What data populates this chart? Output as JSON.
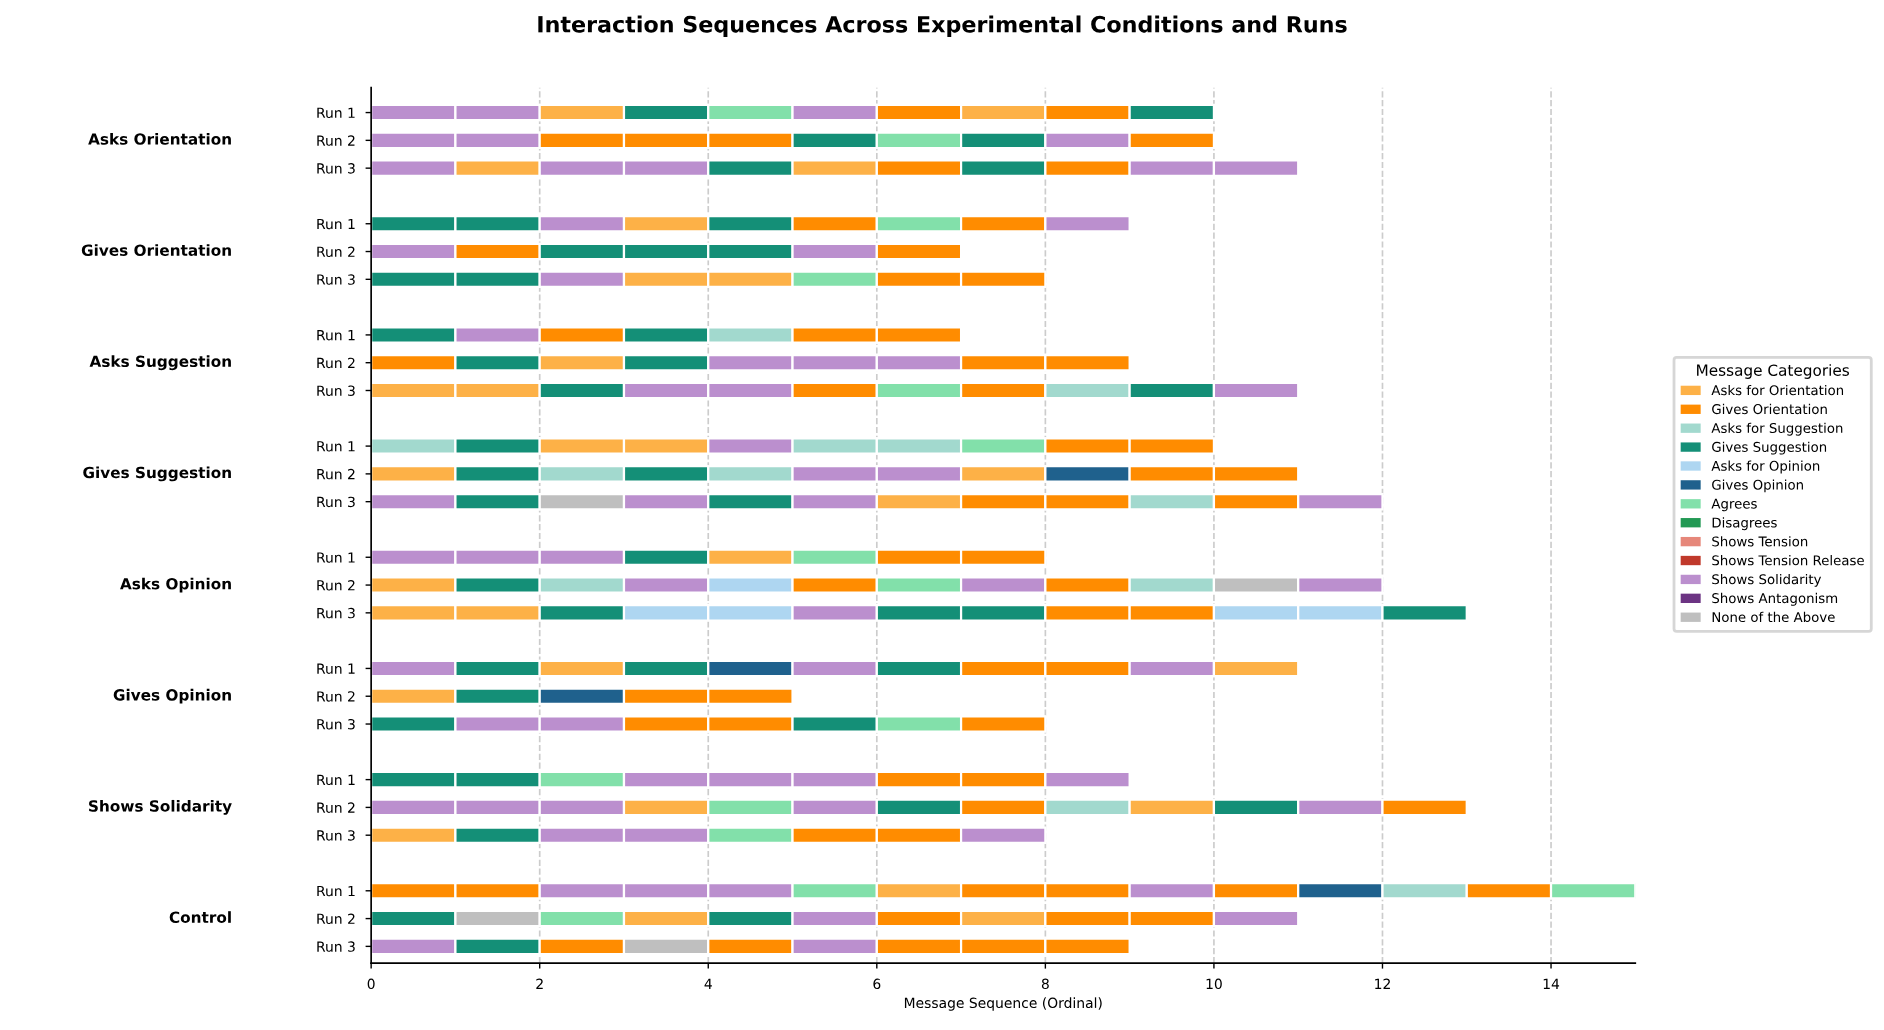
{
  "chart_data": {
    "type": "bar",
    "orientation": "horizontal",
    "stacked": true,
    "title": "Interaction Sequences Across Experimental Conditions and Runs",
    "xlabel": "Message Sequence (Ordinal)",
    "xlim": [
      0,
      15
    ],
    "xticks": [
      0,
      2,
      4,
      6,
      8,
      10,
      12,
      14
    ],
    "grid": "x",
    "legend": "right",
    "legend_title": "Message Categories",
    "annotations": [
      "Asks Orientation",
      "Gives Orientation",
      "Asks Suggestion",
      "Gives Suggestion",
      "Asks Opinion",
      "Gives Opinion",
      "Shows Solidarity",
      "Control"
    ],
    "categories": [
      "Run 1",
      "Run 2",
      "Run 3",
      null,
      "Run 1",
      "Run 2",
      "Run 3",
      null,
      "Run 1",
      "Run 2",
      "Run 3",
      null,
      "Run 1",
      "Run 2",
      "Run 3",
      null,
      "Run 1",
      "Run 2",
      "Run 3",
      null,
      "Run 1",
      "Run 2",
      "Run 3",
      null,
      "Run 1",
      "Run 2",
      "Run 3",
      null,
      "Run 1",
      "Run 2",
      "Run 3"
    ],
    "series": [
      {
        "values": [
          1,
          1,
          1,
          null,
          1,
          1,
          1,
          null,
          1,
          1,
          1,
          null,
          1,
          1,
          1,
          null,
          1,
          1,
          1,
          null,
          1,
          1,
          1,
          null,
          1,
          1,
          1,
          null,
          1,
          1,
          1
        ],
        "colors": [
          "#bb8fce",
          "#bb8fce",
          "#bb8fce",
          null,
          "#148f77",
          "#bb8fce",
          "#148f77",
          null,
          "#148f77",
          "#ff8c00",
          "#fdb147",
          null,
          "#a2d9ce",
          "#fdb147",
          "#bb8fce",
          null,
          "#bb8fce",
          "#fdb147",
          "#fdb147",
          null,
          "#bb8fce",
          "#fdb147",
          "#148f77",
          null,
          "#148f77",
          "#bb8fce",
          "#fdb147",
          null,
          "#ff8c00",
          "#148f77",
          "#bb8fce"
        ]
      },
      {
        "values": [
          1,
          1,
          1,
          null,
          1,
          1,
          1,
          null,
          1,
          1,
          1,
          null,
          1,
          1,
          1,
          null,
          1,
          1,
          1,
          null,
          1,
          1,
          1,
          null,
          1,
          1,
          1,
          null,
          1,
          1,
          1
        ],
        "colors": [
          "#bb8fce",
          "#bb8fce",
          "#fdb147",
          null,
          "#148f77",
          "#ff8c00",
          "#148f77",
          null,
          "#bb8fce",
          "#148f77",
          "#fdb147",
          null,
          "#148f77",
          "#148f77",
          "#148f77",
          null,
          "#bb8fce",
          "#148f77",
          "#fdb147",
          null,
          "#148f77",
          "#148f77",
          "#bb8fce",
          null,
          "#148f77",
          "#bb8fce",
          "#148f77",
          null,
          "#ff8c00",
          "#bfbfbf",
          "#148f77"
        ]
      },
      {
        "values": [
          1,
          1,
          1,
          null,
          1,
          1,
          1,
          null,
          1,
          1,
          1,
          null,
          1,
          1,
          1,
          null,
          1,
          1,
          1,
          null,
          1,
          1,
          1,
          null,
          1,
          1,
          1,
          null,
          1,
          1,
          1
        ],
        "colors": [
          "#fdb147",
          "#ff8c00",
          "#bb8fce",
          null,
          "#bb8fce",
          "#148f77",
          "#bb8fce",
          null,
          "#ff8c00",
          "#fdb147",
          "#148f77",
          null,
          "#fdb147",
          "#a2d9ce",
          "#bfbfbf",
          null,
          "#bb8fce",
          "#a2d9ce",
          "#148f77",
          null,
          "#fdb147",
          "#1f618d",
          "#bb8fce",
          null,
          "#82e0aa",
          "#bb8fce",
          "#bb8fce",
          null,
          "#bb8fce",
          "#82e0aa",
          "#ff8c00"
        ]
      },
      {
        "values": [
          1,
          1,
          1,
          null,
          1,
          1,
          1,
          null,
          1,
          1,
          1,
          null,
          1,
          1,
          1,
          null,
          1,
          1,
          1,
          null,
          1,
          1,
          1,
          null,
          1,
          1,
          1,
          null,
          1,
          1,
          1
        ],
        "colors": [
          "#148f77",
          "#ff8c00",
          "#bb8fce",
          null,
          "#fdb147",
          "#148f77",
          "#fdb147",
          null,
          "#148f77",
          "#148f77",
          "#bb8fce",
          null,
          "#fdb147",
          "#148f77",
          "#bb8fce",
          null,
          "#148f77",
          "#bb8fce",
          "#aed6f1",
          null,
          "#148f77",
          "#ff8c00",
          "#ff8c00",
          null,
          "#bb8fce",
          "#fdb147",
          "#bb8fce",
          null,
          "#bb8fce",
          "#fdb147",
          "#bfbfbf"
        ]
      },
      {
        "values": [
          1,
          1,
          1,
          null,
          1,
          1,
          1,
          null,
          1,
          1,
          1,
          null,
          1,
          1,
          1,
          null,
          1,
          1,
          1,
          null,
          1,
          1,
          1,
          null,
          1,
          1,
          1,
          null,
          1,
          1,
          1
        ],
        "colors": [
          "#82e0aa",
          "#ff8c00",
          "#148f77",
          null,
          "#148f77",
          "#148f77",
          "#fdb147",
          null,
          "#a2d9ce",
          "#bb8fce",
          "#bb8fce",
          null,
          "#bb8fce",
          "#a2d9ce",
          "#148f77",
          null,
          "#fdb147",
          "#aed6f1",
          "#aed6f1",
          null,
          "#1f618d",
          "#ff8c00",
          "#ff8c00",
          null,
          "#bb8fce",
          "#82e0aa",
          "#82e0aa",
          null,
          "#bb8fce",
          "#148f77",
          "#ff8c00"
        ]
      },
      {
        "values": [
          1,
          1,
          1,
          null,
          1,
          1,
          1,
          null,
          1,
          1,
          1,
          null,
          1,
          1,
          1,
          null,
          1,
          1,
          1,
          null,
          1,
          null,
          1,
          null,
          1,
          1,
          1,
          null,
          1,
          1,
          1
        ],
        "colors": [
          "#bb8fce",
          "#148f77",
          "#fdb147",
          null,
          "#ff8c00",
          "#bb8fce",
          "#82e0aa",
          null,
          "#ff8c00",
          "#bb8fce",
          "#ff8c00",
          null,
          "#a2d9ce",
          "#bb8fce",
          "#bb8fce",
          null,
          "#82e0aa",
          "#ff8c00",
          "#bb8fce",
          null,
          "#bb8fce",
          null,
          "#148f77",
          null,
          "#bb8fce",
          "#bb8fce",
          "#ff8c00",
          null,
          "#82e0aa",
          "#bb8fce",
          "#bb8fce"
        ]
      },
      {
        "values": [
          1,
          1,
          1,
          null,
          1,
          1,
          1,
          null,
          1,
          1,
          1,
          null,
          1,
          1,
          1,
          null,
          1,
          1,
          1,
          null,
          1,
          null,
          1,
          null,
          1,
          1,
          1,
          null,
          1,
          1,
          1
        ],
        "colors": [
          "#ff8c00",
          "#82e0aa",
          "#ff8c00",
          null,
          "#82e0aa",
          "#ff8c00",
          "#ff8c00",
          null,
          "#ff8c00",
          "#bb8fce",
          "#82e0aa",
          null,
          "#a2d9ce",
          "#bb8fce",
          "#fdb147",
          null,
          "#ff8c00",
          "#82e0aa",
          "#148f77",
          null,
          "#148f77",
          null,
          "#82e0aa",
          null,
          "#ff8c00",
          "#148f77",
          "#ff8c00",
          null,
          "#fdb147",
          "#ff8c00",
          "#ff8c00"
        ]
      },
      {
        "values": [
          1,
          1,
          1,
          null,
          1,
          null,
          1,
          null,
          null,
          1,
          1,
          null,
          1,
          1,
          1,
          null,
          1,
          1,
          1,
          null,
          1,
          null,
          1,
          null,
          1,
          1,
          1,
          null,
          1,
          1,
          1
        ],
        "colors": [
          "#fdb147",
          "#148f77",
          "#148f77",
          null,
          "#ff8c00",
          null,
          "#ff8c00",
          null,
          null,
          "#ff8c00",
          "#ff8c00",
          null,
          "#82e0aa",
          "#fdb147",
          "#ff8c00",
          null,
          "#ff8c00",
          "#bb8fce",
          "#148f77",
          null,
          "#ff8c00",
          null,
          "#ff8c00",
          null,
          "#ff8c00",
          "#ff8c00",
          "#bb8fce",
          null,
          "#ff8c00",
          "#fdb147",
          "#ff8c00"
        ]
      },
      {
        "values": [
          1,
          1,
          1,
          null,
          1,
          null,
          null,
          null,
          null,
          1,
          1,
          null,
          1,
          1,
          1,
          null,
          null,
          1,
          1,
          null,
          1,
          null,
          null,
          null,
          1,
          1,
          null,
          null,
          1,
          1,
          1
        ],
        "colors": [
          "#ff8c00",
          "#bb8fce",
          "#ff8c00",
          null,
          "#bb8fce",
          null,
          null,
          null,
          null,
          "#ff8c00",
          "#a2d9ce",
          null,
          "#ff8c00",
          "#1f618d",
          "#ff8c00",
          null,
          null,
          "#ff8c00",
          "#ff8c00",
          null,
          "#ff8c00",
          null,
          null,
          null,
          "#bb8fce",
          "#a2d9ce",
          null,
          null,
          "#ff8c00",
          "#ff8c00",
          "#ff8c00"
        ]
      },
      {
        "values": [
          1,
          1,
          1,
          null,
          null,
          null,
          null,
          null,
          null,
          null,
          1,
          null,
          1,
          1,
          1,
          null,
          null,
          1,
          1,
          null,
          1,
          null,
          null,
          null,
          null,
          1,
          null,
          null,
          1,
          1,
          null
        ],
        "colors": [
          "#148f77",
          "#ff8c00",
          "#bb8fce",
          null,
          null,
          null,
          null,
          null,
          null,
          null,
          "#148f77",
          null,
          "#ff8c00",
          "#ff8c00",
          "#a2d9ce",
          null,
          null,
          "#a2d9ce",
          "#ff8c00",
          null,
          "#bb8fce",
          null,
          null,
          null,
          null,
          "#fdb147",
          null,
          null,
          "#bb8fce",
          "#ff8c00",
          null
        ]
      },
      {
        "values": [
          null,
          null,
          1,
          null,
          null,
          null,
          null,
          null,
          null,
          null,
          1,
          null,
          null,
          1,
          1,
          null,
          null,
          1,
          1,
          null,
          1,
          null,
          null,
          null,
          null,
          1,
          null,
          null,
          1,
          1,
          null
        ],
        "colors": [
          null,
          null,
          "#bb8fce",
          null,
          null,
          null,
          null,
          null,
          null,
          null,
          "#bb8fce",
          null,
          null,
          "#ff8c00",
          "#ff8c00",
          null,
          null,
          "#bfbfbf",
          "#aed6f1",
          null,
          "#fdb147",
          null,
          null,
          null,
          null,
          "#148f77",
          null,
          null,
          "#ff8c00",
          "#bb8fce",
          null
        ]
      },
      {
        "values": [
          null,
          null,
          null,
          null,
          null,
          null,
          null,
          null,
          null,
          null,
          null,
          null,
          null,
          null,
          1,
          null,
          null,
          1,
          1,
          null,
          null,
          null,
          null,
          null,
          null,
          1,
          null,
          null,
          1,
          null,
          null
        ],
        "colors": [
          null,
          null,
          null,
          null,
          null,
          null,
          null,
          null,
          null,
          null,
          null,
          null,
          null,
          null,
          "#bb8fce",
          null,
          null,
          "#bb8fce",
          "#aed6f1",
          null,
          null,
          null,
          null,
          null,
          null,
          "#bb8fce",
          null,
          null,
          "#1f618d",
          null,
          null
        ]
      },
      {
        "values": [
          null,
          null,
          null,
          null,
          null,
          null,
          null,
          null,
          null,
          null,
          null,
          null,
          null,
          null,
          null,
          null,
          null,
          null,
          1,
          null,
          null,
          null,
          null,
          null,
          null,
          1,
          null,
          null,
          1,
          null,
          null
        ],
        "colors": [
          null,
          null,
          null,
          null,
          null,
          null,
          null,
          null,
          null,
          null,
          null,
          null,
          null,
          null,
          null,
          null,
          null,
          null,
          "#148f77",
          null,
          null,
          null,
          null,
          null,
          null,
          "#ff8c00",
          null,
          null,
          "#a2d9ce",
          null,
          null
        ]
      },
      {
        "values": [
          null,
          null,
          null,
          null,
          null,
          null,
          null,
          null,
          null,
          null,
          null,
          null,
          null,
          null,
          null,
          null,
          null,
          null,
          null,
          null,
          null,
          null,
          null,
          null,
          null,
          null,
          null,
          null,
          1,
          null,
          null
        ],
        "colors": [
          null,
          null,
          null,
          null,
          null,
          null,
          null,
          null,
          null,
          null,
          null,
          null,
          null,
          null,
          null,
          null,
          null,
          null,
          null,
          null,
          null,
          null,
          null,
          null,
          null,
          null,
          null,
          null,
          "#ff8c00",
          null,
          null
        ]
      },
      {
        "values": [
          null,
          null,
          null,
          null,
          null,
          null,
          null,
          null,
          null,
          null,
          null,
          null,
          null,
          null,
          null,
          null,
          null,
          null,
          null,
          null,
          null,
          null,
          null,
          null,
          null,
          null,
          null,
          null,
          1,
          null,
          null
        ],
        "colors": [
          null,
          null,
          null,
          null,
          null,
          null,
          null,
          null,
          null,
          null,
          null,
          null,
          null,
          null,
          null,
          null,
          null,
          null,
          null,
          null,
          null,
          null,
          null,
          null,
          null,
          null,
          null,
          null,
          "#82e0aa",
          null,
          null
        ]
      },
      {
        "name": "Asks for Orientation",
        "color": "#fdb147",
        "values": [
          null,
          null,
          null,
          null,
          null,
          null,
          null,
          null,
          null,
          null,
          null,
          null,
          null,
          null,
          null,
          null,
          null,
          null,
          null,
          null,
          null,
          null,
          null,
          null,
          null,
          null,
          null,
          null,
          null,
          null,
          null
        ]
      },
      {
        "name": "Gives Orientation",
        "color": "#ff8c00",
        "values": [
          null,
          null,
          null,
          null,
          null,
          null,
          null,
          null,
          null,
          null,
          null,
          null,
          null,
          null,
          null,
          null,
          null,
          null,
          null,
          null,
          null,
          null,
          null,
          null,
          null,
          null,
          null,
          null,
          null,
          null,
          null
        ]
      },
      {
        "name": "Asks for Suggestion",
        "color": "#a2d9ce",
        "values": [
          null,
          null,
          null,
          null,
          null,
          null,
          null,
          null,
          null,
          null,
          null,
          null,
          null,
          null,
          null,
          null,
          null,
          null,
          null,
          null,
          null,
          null,
          null,
          null,
          null,
          null,
          null,
          null,
          null,
          null,
          null
        ]
      },
      {
        "name": "Gives Suggestion",
        "color": "#148f77",
        "values": [
          null,
          null,
          null,
          null,
          null,
          null,
          null,
          null,
          null,
          null,
          null,
          null,
          null,
          null,
          null,
          null,
          null,
          null,
          null,
          null,
          null,
          null,
          null,
          null,
          null,
          null,
          null,
          null,
          null,
          null,
          null
        ]
      },
      {
        "name": "Asks for Opinion",
        "color": "#aed6f1",
        "values": [
          null,
          null,
          null,
          null,
          null,
          null,
          null,
          null,
          null,
          null,
          null,
          null,
          null,
          null,
          null,
          null,
          null,
          null,
          null,
          null,
          null,
          null,
          null,
          null,
          null,
          null,
          null,
          null,
          null,
          null,
          null
        ]
      },
      {
        "name": "Gives Opinion",
        "color": "#1f618d",
        "values": [
          null,
          null,
          null,
          null,
          null,
          null,
          null,
          null,
          null,
          null,
          null,
          null,
          null,
          null,
          null,
          null,
          null,
          null,
          null,
          null,
          null,
          null,
          null,
          null,
          null,
          null,
          null,
          null,
          null,
          null,
          null
        ]
      },
      {
        "name": "Agrees",
        "color": "#82e0aa",
        "values": [
          null,
          null,
          null,
          null,
          null,
          null,
          null,
          null,
          null,
          null,
          null,
          null,
          null,
          null,
          null,
          null,
          null,
          null,
          null,
          null,
          null,
          null,
          null,
          null,
          null,
          null,
          null,
          null,
          null,
          null,
          null
        ]
      },
      {
        "name": "Disagrees",
        "color": "#229954",
        "values": [
          null,
          null,
          null,
          null,
          null,
          null,
          null,
          null,
          null,
          null,
          null,
          null,
          null,
          null,
          null,
          null,
          null,
          null,
          null,
          null,
          null,
          null,
          null,
          null,
          null,
          null,
          null,
          null,
          null,
          null,
          null
        ]
      },
      {
        "name": "Shows Tension",
        "color": "#e6877a",
        "values": [
          null,
          null,
          null,
          null,
          null,
          null,
          null,
          null,
          null,
          null,
          null,
          null,
          null,
          null,
          null,
          null,
          null,
          null,
          null,
          null,
          null,
          null,
          null,
          null,
          null,
          null,
          null,
          null,
          null,
          null,
          null
        ]
      },
      {
        "name": "Shows Tension Release",
        "color": "#c0392b",
        "values": [
          null,
          null,
          null,
          null,
          null,
          null,
          null,
          null,
          null,
          null,
          null,
          null,
          null,
          null,
          null,
          null,
          null,
          null,
          null,
          null,
          null,
          null,
          null,
          null,
          null,
          null,
          null,
          null,
          null,
          null,
          null
        ]
      },
      {
        "name": "Shows Solidarity",
        "color": "#bb8fce",
        "values": [
          null,
          null,
          null,
          null,
          null,
          null,
          null,
          null,
          null,
          null,
          null,
          null,
          null,
          null,
          null,
          null,
          null,
          null,
          null,
          null,
          null,
          null,
          null,
          null,
          null,
          null,
          null,
          null,
          null,
          null,
          null
        ]
      },
      {
        "name": "Shows Antagonism",
        "color": "#6c3483",
        "values": [
          null,
          null,
          null,
          null,
          null,
          null,
          null,
          null,
          null,
          null,
          null,
          null,
          null,
          null,
          null,
          null,
          null,
          null,
          null,
          null,
          null,
          null,
          null,
          null,
          null,
          null,
          null,
          null,
          null,
          null,
          null
        ]
      },
      {
        "name": "None of the Above",
        "color": "#bfbfbf",
        "values": [
          null,
          null,
          null,
          null,
          null,
          null,
          null,
          null,
          null,
          null,
          null,
          null,
          null,
          null,
          null,
          null,
          null,
          null,
          null,
          null,
          null,
          null,
          null,
          null,
          null,
          null,
          null,
          null,
          null,
          null,
          null
        ]
      }
    ]
  }
}
